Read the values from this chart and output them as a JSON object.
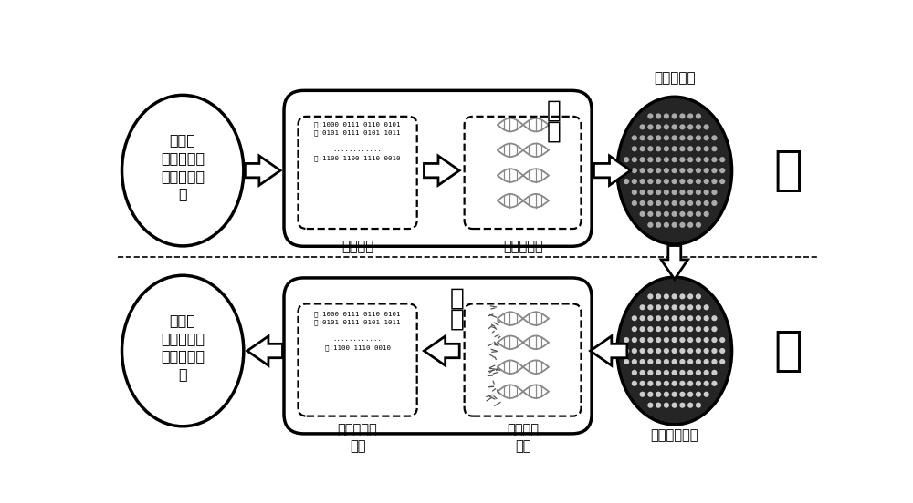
{
  "bg_color": "#ffffff",
  "write_label": "写",
  "read_label": "读",
  "encode_label": "编\n码",
  "decode_label": "解\n码",
  "binary_text_top": "文:1000 0111 0110 0101\n字:0101 0111 0101 1011\n\n............\n题:1100 1100 1110 0010",
  "binary_text_bottom": "文:1000 0111 0110 0101\n字:0101 0111 0101 1011\n\n............\n题:1100 1110 0010",
  "info_text": "文字、\n视频、音频\n和图片等信\n息",
  "encode_chain_label": "编码链组合",
  "write_in_label": "编码链写入",
  "binary_label_top": "二进制码",
  "restore_label": "还原成二进\n制码",
  "fluor_read_label": "荧光信息\n读取",
  "fluor_probe_label": "荧光探针杂交"
}
